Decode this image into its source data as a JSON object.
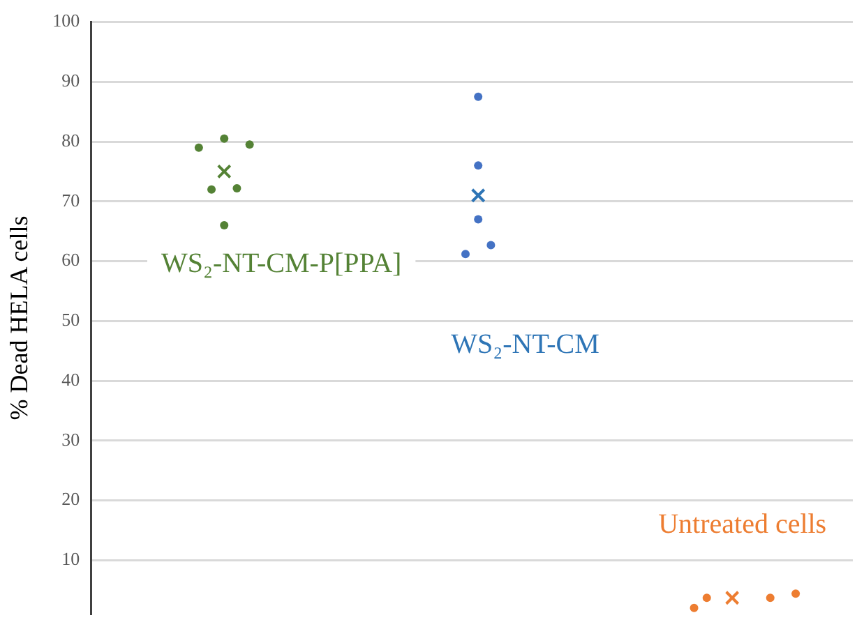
{
  "chart_data": {
    "type": "scatter",
    "ylabel": "% Dead HELA cells",
    "categories": [
      null,
      null,
      null,
      null,
      null,
      null,
      null,
      null,
      null,
      null,
      null,
      null,
      null,
      null,
      null,
      null,
      null,
      null,
      null,
      null,
      null,
      null,
      null,
      null,
      null,
      null,
      null,
      null,
      null,
      null,
      null,
      null,
      null,
      null,
      null,
      null,
      null,
      null,
      null,
      null,
      null,
      null,
      null,
      null,
      null,
      null,
      null,
      null,
      null,
      null,
      null,
      null,
      null,
      null,
      null,
      null,
      null,
      null,
      null,
      null
    ],
    "ylim": [
      1,
      100
    ],
    "yticks": [
      10,
      20,
      30,
      40,
      50,
      60,
      70,
      80,
      90,
      100
    ],
    "tick_labels": "y",
    "grid": "y",
    "series": [
      {
        "color": "#548235",
        "marker": "circle",
        "values": [
          null,
          null,
          null,
          null,
          null,
          null,
          null,
          null,
          79,
          72,
          80.5,
          72.2,
          79.5,
          null,
          null,
          null,
          null,
          null,
          null,
          null,
          null,
          null,
          null,
          null,
          null,
          null,
          null,
          null,
          null,
          null,
          null,
          null,
          null,
          null,
          null,
          null,
          null,
          null,
          null,
          null,
          null,
          null,
          null,
          null,
          null,
          null,
          null,
          null,
          null,
          null,
          null,
          null,
          null,
          null,
          null,
          null,
          null,
          null,
          null,
          null
        ]
      },
      {
        "color": "#548235",
        "marker": "circle",
        "values": [
          null,
          null,
          null,
          null,
          null,
          null,
          null,
          null,
          null,
          null,
          66,
          null,
          null,
          null,
          null,
          null,
          null,
          null,
          null,
          null,
          null,
          null,
          null,
          null,
          null,
          null,
          null,
          null,
          null,
          null,
          null,
          null,
          null,
          null,
          null,
          null,
          null,
          null,
          null,
          null,
          null,
          null,
          null,
          null,
          null,
          null,
          null,
          null,
          null,
          null,
          null,
          null,
          null,
          null,
          null,
          null,
          null,
          null,
          null,
          null
        ]
      },
      {
        "color": "#548235",
        "marker": "cross",
        "values": [
          null,
          null,
          null,
          null,
          null,
          null,
          null,
          null,
          null,
          null,
          75,
          null,
          null,
          null,
          null,
          null,
          null,
          null,
          null,
          null,
          null,
          null,
          null,
          null,
          null,
          null,
          null,
          null,
          null,
          null,
          null,
          null,
          null,
          null,
          null,
          null,
          null,
          null,
          null,
          null,
          null,
          null,
          null,
          null,
          null,
          null,
          null,
          null,
          null,
          null,
          null,
          null,
          null,
          null,
          null,
          null,
          null,
          null,
          null,
          null
        ]
      },
      {
        "color": "#4472c4",
        "marker": "circle",
        "values": [
          null,
          null,
          null,
          null,
          null,
          null,
          null,
          null,
          null,
          null,
          null,
          null,
          null,
          null,
          null,
          null,
          null,
          null,
          null,
          null,
          null,
          null,
          null,
          null,
          null,
          null,
          null,
          null,
          null,
          61.2,
          87.5,
          62.7,
          null,
          null,
          null,
          null,
          null,
          null,
          null,
          null,
          null,
          null,
          null,
          null,
          null,
          null,
          null,
          null,
          null,
          null,
          null,
          null,
          null,
          null,
          null,
          null,
          null,
          null,
          null,
          null
        ]
      },
      {
        "color": "#4472c4",
        "marker": "circle",
        "values": [
          null,
          null,
          null,
          null,
          null,
          null,
          null,
          null,
          null,
          null,
          null,
          null,
          null,
          null,
          null,
          null,
          null,
          null,
          null,
          null,
          null,
          null,
          null,
          null,
          null,
          null,
          null,
          null,
          null,
          null,
          76,
          null,
          null,
          null,
          null,
          null,
          null,
          null,
          null,
          null,
          null,
          null,
          null,
          null,
          null,
          null,
          null,
          null,
          null,
          null,
          null,
          null,
          null,
          null,
          null,
          null,
          null,
          null,
          null,
          null
        ]
      },
      {
        "color": "#4472c4",
        "marker": "circle",
        "values": [
          null,
          null,
          null,
          null,
          null,
          null,
          null,
          null,
          null,
          null,
          null,
          null,
          null,
          null,
          null,
          null,
          null,
          null,
          null,
          null,
          null,
          null,
          null,
          null,
          null,
          null,
          null,
          null,
          null,
          null,
          67,
          null,
          null,
          null,
          null,
          null,
          null,
          null,
          null,
          null,
          null,
          null,
          null,
          null,
          null,
          null,
          null,
          null,
          null,
          null,
          null,
          null,
          null,
          null,
          null,
          null,
          null,
          null,
          null,
          null
        ]
      },
      {
        "color": "#2e75b6",
        "marker": "cross",
        "values": [
          null,
          null,
          null,
          null,
          null,
          null,
          null,
          null,
          null,
          null,
          null,
          null,
          null,
          null,
          null,
          null,
          null,
          null,
          null,
          null,
          null,
          null,
          null,
          null,
          null,
          null,
          null,
          null,
          null,
          null,
          71,
          null,
          null,
          null,
          null,
          null,
          null,
          null,
          null,
          null,
          null,
          null,
          null,
          null,
          null,
          null,
          null,
          null,
          null,
          null,
          null,
          null,
          null,
          null,
          null,
          null,
          null,
          null,
          null,
          null
        ]
      },
      {
        "color": "#ed7d31",
        "marker": "circle",
        "values": [
          null,
          null,
          null,
          null,
          null,
          null,
          null,
          null,
          null,
          null,
          null,
          null,
          null,
          null,
          null,
          null,
          null,
          null,
          null,
          null,
          null,
          null,
          null,
          null,
          null,
          null,
          null,
          null,
          null,
          null,
          null,
          null,
          null,
          null,
          null,
          null,
          null,
          null,
          null,
          null,
          null,
          null,
          null,
          null,
          null,
          null,
          null,
          2,
          3.7,
          null,
          null,
          null,
          null,
          3.7,
          null,
          4.4,
          null,
          null,
          null,
          null
        ]
      },
      {
        "color": "#ed7d31",
        "marker": "cross",
        "values": [
          null,
          null,
          null,
          null,
          null,
          null,
          null,
          null,
          null,
          null,
          null,
          null,
          null,
          null,
          null,
          null,
          null,
          null,
          null,
          null,
          null,
          null,
          null,
          null,
          null,
          null,
          null,
          null,
          null,
          null,
          null,
          null,
          null,
          null,
          null,
          null,
          null,
          null,
          null,
          null,
          null,
          null,
          null,
          null,
          null,
          null,
          null,
          null,
          null,
          null,
          3.7,
          null,
          null,
          null,
          null,
          null,
          null,
          null,
          null,
          null
        ]
      }
    ],
    "annotations": [
      "WS₂-NT-CM-P[PPA]",
      "WS₂-NT-CM",
      "Untreated cells"
    ]
  }
}
